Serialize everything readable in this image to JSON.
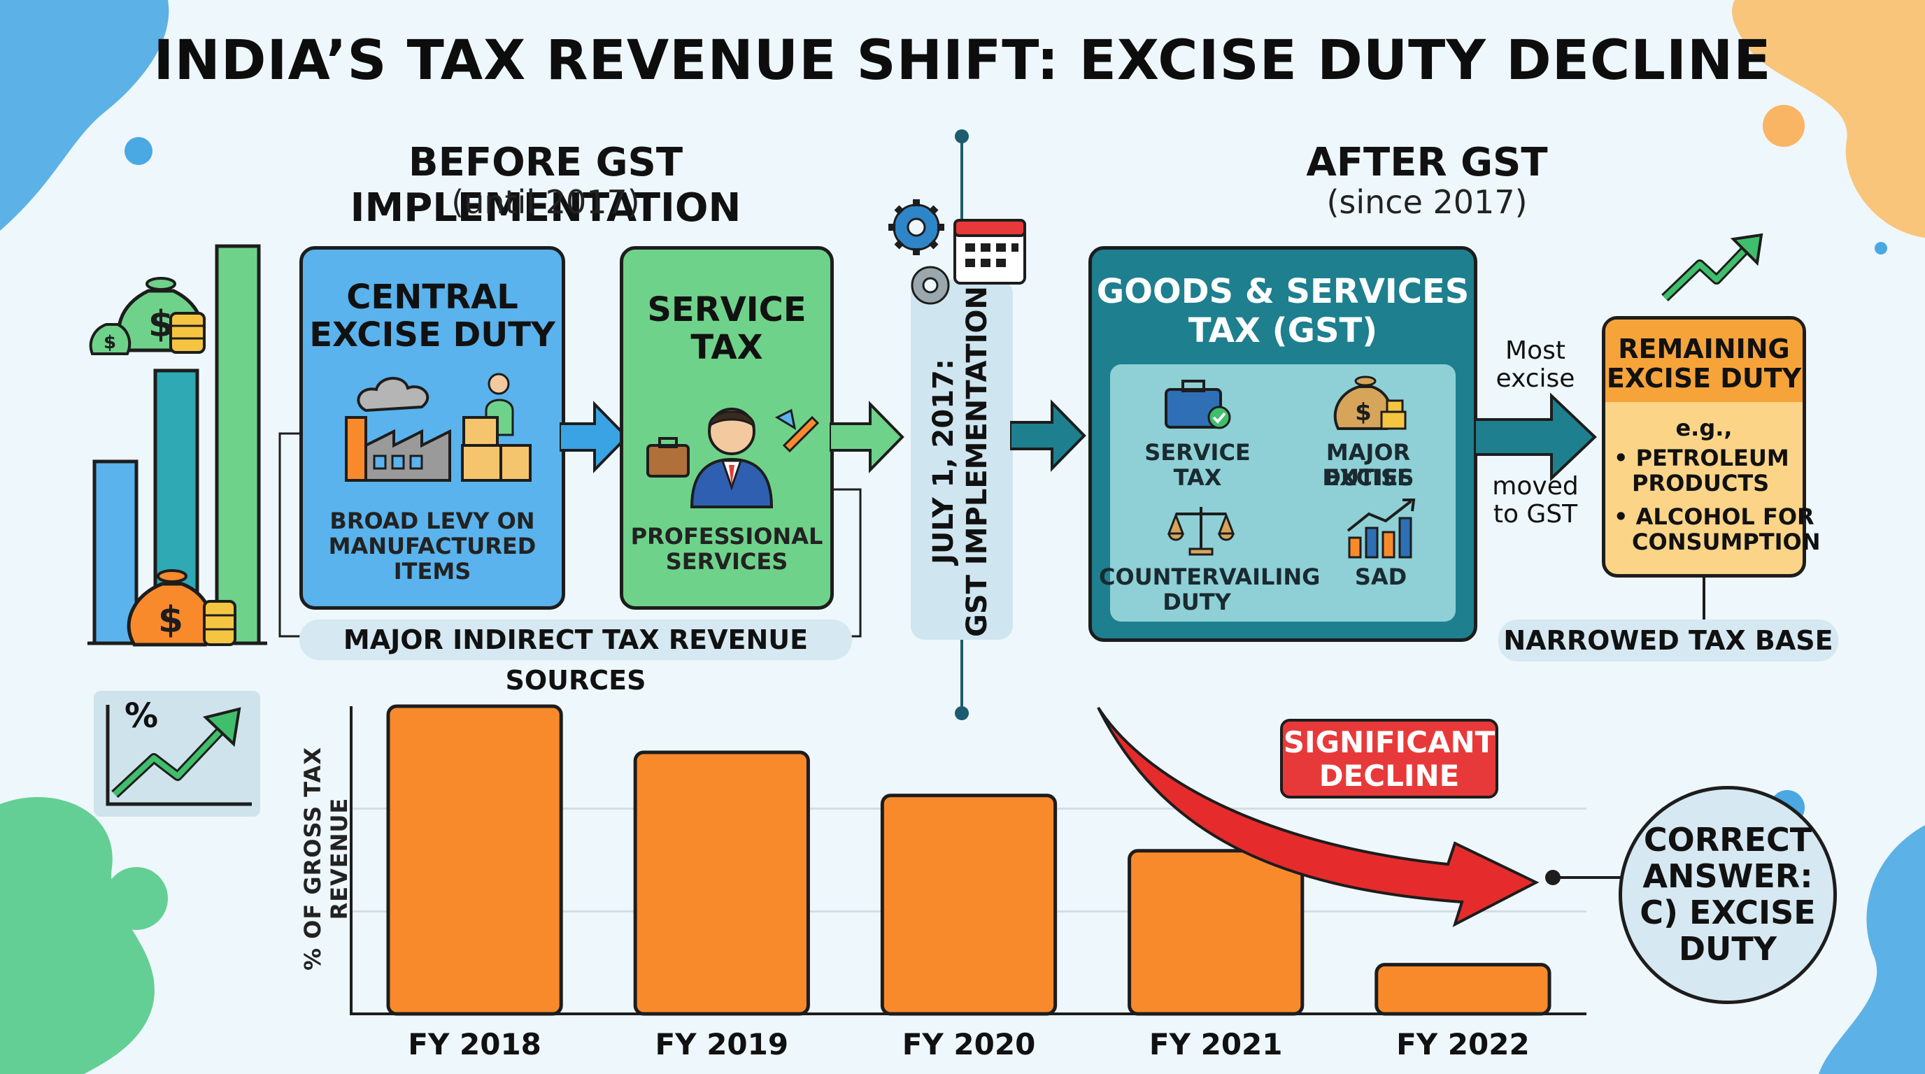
{
  "title": "INDIA’S TAX REVENUE SHIFT: EXCISE DUTY DECLINE",
  "before": {
    "heading": "BEFORE GST IMPLEMENTATION",
    "subheading": "(until 2017)",
    "excise_box": {
      "title_line1": "CENTRAL",
      "title_line2": "EXCISE DUTY",
      "caption_line1": "BROAD LEVY ON",
      "caption_line2": "MANUFACTURED",
      "caption_line3": "ITEMS"
    },
    "service_box": {
      "title_line1": "SERVICE",
      "title_line2": "TAX",
      "caption_line1": "PROFESSIONAL",
      "caption_line2": "SERVICES"
    },
    "sources_label": "MAJOR INDIRECT TAX REVENUE SOURCES"
  },
  "timeline": {
    "label_line1": "JULY 1, 2017:",
    "label_line2": "GST IMPLEMENTATION"
  },
  "after": {
    "heading": "AFTER GST",
    "subheading": "(since 2017)",
    "gst_box": {
      "title_line1": "GOODS & SERVICES",
      "title_line2": "TAX (GST)",
      "items": [
        {
          "line1": "SERVICE",
          "line2": "TAX"
        },
        {
          "line1": "MAJOR EXCISE",
          "line2": "DUTIES"
        },
        {
          "line1": "COUNTERVAILING",
          "line2": "DUTY"
        },
        {
          "line1": "SAD",
          "line2": ""
        }
      ]
    },
    "arrow_top": "Most excise",
    "arrow_top_line1": "Most",
    "arrow_top_line2": "excise",
    "arrow_bottom_line1": "moved",
    "arrow_bottom_line2": "to GST",
    "remaining_box": {
      "title_line1": "REMAINING",
      "title_line2": "EXCISE DUTY",
      "eg": "e.g.,",
      "bullets": [
        {
          "line1": "PETROLEUM",
          "line2": "PRODUCTS"
        },
        {
          "line1": "ALCOHOL FOR",
          "line2": "CONSUMPTION"
        }
      ]
    },
    "narrowed_label": "NARROWED TAX BASE"
  },
  "callout": {
    "line1": "SIGNIFICANT",
    "line2": "DECLINE"
  },
  "answer": {
    "line1": "CORRECT",
    "line2": "ANSWER:",
    "line3": "C) EXCISE",
    "line4": "DUTY"
  },
  "percent_icon_text": "%",
  "colors": {
    "excise_box": "#5ab3ec",
    "service_box": "#6fd28b",
    "gst_box": "#1e7f8e",
    "gst_inner": "#8ed0d6",
    "remaining_box": "#fbd488",
    "remaining_header": "#f6a33a",
    "bars": "#f98a2c",
    "decline_arrow": "#e52b2b",
    "callout_bg": "#e8393a"
  },
  "chart_data": {
    "type": "bar",
    "categories": [
      "FY 2018",
      "FY 2019",
      "FY 2020",
      "FY 2021",
      "FY 2022"
    ],
    "values": [
      100,
      85,
      71,
      53,
      16
    ],
    "ylabel": "% OF GROSS TAX REVENUE",
    "ylim": [
      0,
      100
    ],
    "grid": true
  }
}
